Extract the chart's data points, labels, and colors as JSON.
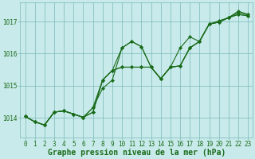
{
  "xlabel": "Graphe pression niveau de la mer (hPa)",
  "xlim": [
    -0.5,
    23.5
  ],
  "ylim": [
    1013.4,
    1017.6
  ],
  "yticks": [
    1014,
    1015,
    1016,
    1017
  ],
  "xticks": [
    0,
    1,
    2,
    3,
    4,
    5,
    6,
    7,
    8,
    9,
    10,
    11,
    12,
    13,
    14,
    15,
    16,
    17,
    18,
    19,
    20,
    21,
    22,
    23
  ],
  "bg_color": "#c8eaea",
  "grid_color": "#7ab8b8",
  "line_color": "#1a6b1a",
  "series": [
    [
      1014.05,
      1013.88,
      1013.78,
      1014.18,
      1014.22,
      1014.12,
      1014.02,
      1014.32,
      1014.92,
      1015.18,
      1016.18,
      1016.38,
      1016.22,
      1015.58,
      1015.22,
      1015.58,
      1015.62,
      1016.18,
      1016.38,
      1016.92,
      1016.98,
      1017.12,
      1017.28,
      1017.22
    ],
    [
      1014.05,
      1013.88,
      1013.78,
      1014.18,
      1014.22,
      1014.12,
      1014.02,
      1014.18,
      1015.18,
      1015.48,
      1015.58,
      1015.58,
      1015.58,
      1015.58,
      1015.22,
      1015.58,
      1015.62,
      1016.18,
      1016.38,
      1016.92,
      1016.98,
      1017.12,
      1017.22,
      1017.18
    ],
    [
      1014.05,
      1013.88,
      1013.78,
      1014.18,
      1014.22,
      1014.12,
      1014.02,
      1014.18,
      1015.18,
      1015.48,
      1015.58,
      1015.58,
      1015.58,
      1015.58,
      1015.22,
      1015.58,
      1015.62,
      1016.18,
      1016.38,
      1016.92,
      1016.98,
      1017.12,
      1017.22,
      1017.18
    ],
    [
      1014.05,
      1013.88,
      1013.78,
      1014.18,
      1014.22,
      1014.12,
      1014.02,
      1014.32,
      1015.18,
      1015.48,
      1016.18,
      1016.38,
      1016.22,
      1015.58,
      1015.22,
      1015.58,
      1016.18,
      1016.52,
      1016.38,
      1016.92,
      1017.02,
      1017.12,
      1017.32,
      1017.22
    ]
  ],
  "marker": "D",
  "marker_size": 2.0,
  "linewidth": 0.8,
  "xlabel_fontsize": 7,
  "tick_fontsize": 5.5,
  "tick_color": "#1a6b1a",
  "xlabel_color": "#1a6b1a",
  "xlabel_fontweight": "bold"
}
